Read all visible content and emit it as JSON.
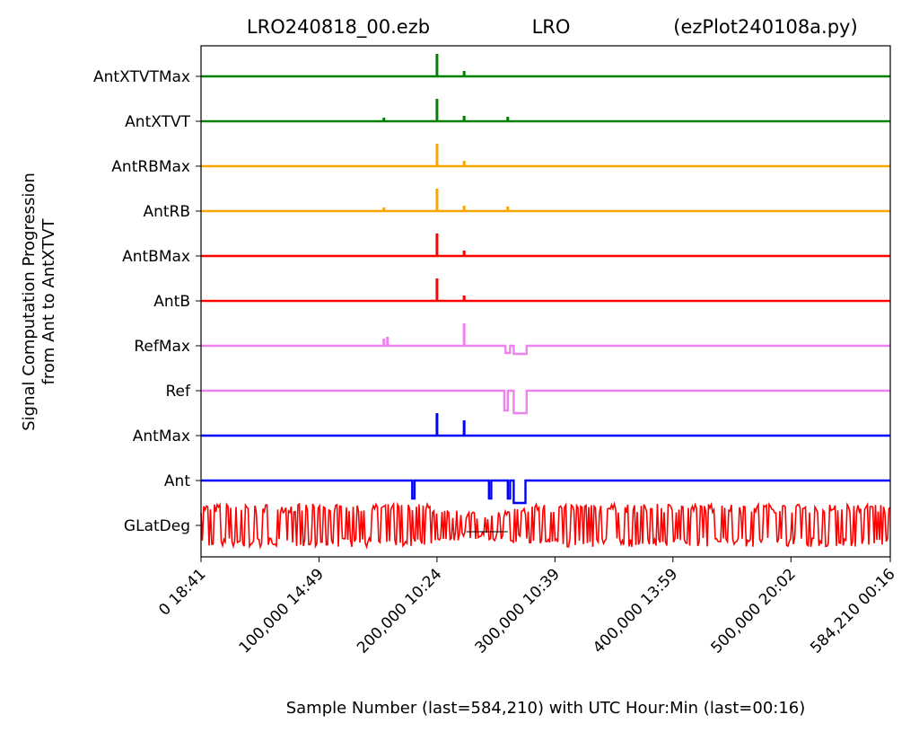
{
  "chart_data": {
    "type": "line",
    "title_parts": [
      "LRO240818_00.ezb",
      "LRO",
      "(ezPlot240108a.py)"
    ],
    "xlabel": "Sample Number (last=584,210) with UTC Hour:Min (last=00:16)",
    "ylabel_lines": [
      "Signal Computation Progression",
      "from Ant to AntXTVT"
    ],
    "xlim": [
      0,
      584210
    ],
    "grid": false,
    "x_ticks": [
      {
        "value": 0,
        "label": "0  18:41"
      },
      {
        "value": 100000,
        "label": "100,000  14:49"
      },
      {
        "value": 200000,
        "label": "200,000  10:24"
      },
      {
        "value": 300000,
        "label": "300,000  10:39"
      },
      {
        "value": 400000,
        "label": "400,000  13:59"
      },
      {
        "value": 500000,
        "label": "500,000  20:02"
      },
      {
        "value": 584210,
        "label": "584,210  00:16"
      }
    ],
    "series": [
      {
        "name": "AntXTVTMax",
        "color": "#008000",
        "features": [
          {
            "x": 200000,
            "h": 25
          },
          {
            "x": 223000,
            "h": 6
          }
        ]
      },
      {
        "name": "AntXTVT",
        "color": "#008000",
        "features": [
          {
            "x": 155000,
            "h": 4
          },
          {
            "x": 200000,
            "h": 25
          },
          {
            "x": 223000,
            "h": 6
          },
          {
            "x": 260000,
            "h": 5
          }
        ]
      },
      {
        "name": "AntRBMax",
        "color": "#FFA500",
        "features": [
          {
            "x": 200000,
            "h": 25
          },
          {
            "x": 223000,
            "h": 6
          }
        ]
      },
      {
        "name": "AntRB",
        "color": "#FFA500",
        "features": [
          {
            "x": 155000,
            "h": 4
          },
          {
            "x": 200000,
            "h": 25
          },
          {
            "x": 223000,
            "h": 6
          },
          {
            "x": 260000,
            "h": 5
          }
        ]
      },
      {
        "name": "AntBMax",
        "color": "#FF0000",
        "features": [
          {
            "x": 200000,
            "h": 25
          },
          {
            "x": 223000,
            "h": 6
          }
        ]
      },
      {
        "name": "AntB",
        "color": "#FF0000",
        "features": [
          {
            "x": 200000,
            "h": 25
          },
          {
            "x": 223000,
            "h": 6
          }
        ]
      },
      {
        "name": "RefMax",
        "color": "#EE82EE",
        "features": [
          {
            "x": 155000,
            "h": 8
          },
          {
            "x": 158000,
            "h": 10
          },
          {
            "x": 223000,
            "h": 25
          }
        ],
        "dips": [
          {
            "x1": 258000,
            "x2": 262000,
            "d": 8
          },
          {
            "x1": 265000,
            "x2": 276000,
            "d": 9
          }
        ]
      },
      {
        "name": "Ref",
        "color": "#EE82EE",
        "dips": [
          {
            "x1": 257000,
            "x2": 260000,
            "d": 22
          },
          {
            "x1": 265000,
            "x2": 276000,
            "d": 25
          }
        ]
      },
      {
        "name": "AntMax",
        "color": "#0000FF",
        "features": [
          {
            "x": 200000,
            "h": 25
          },
          {
            "x": 223000,
            "h": 17
          }
        ]
      },
      {
        "name": "Ant",
        "color": "#0000FF",
        "dips": [
          {
            "x1": 179000,
            "x2": 181000,
            "d": 20
          },
          {
            "x1": 244000,
            "x2": 246000,
            "d": 20
          },
          {
            "x1": 260000,
            "x2": 262000,
            "d": 20
          },
          {
            "x1": 265000,
            "x2": 275000,
            "d": 25
          }
        ]
      },
      {
        "name": "GLatDeg",
        "color": "#FF0000",
        "noise": true
      }
    ]
  }
}
